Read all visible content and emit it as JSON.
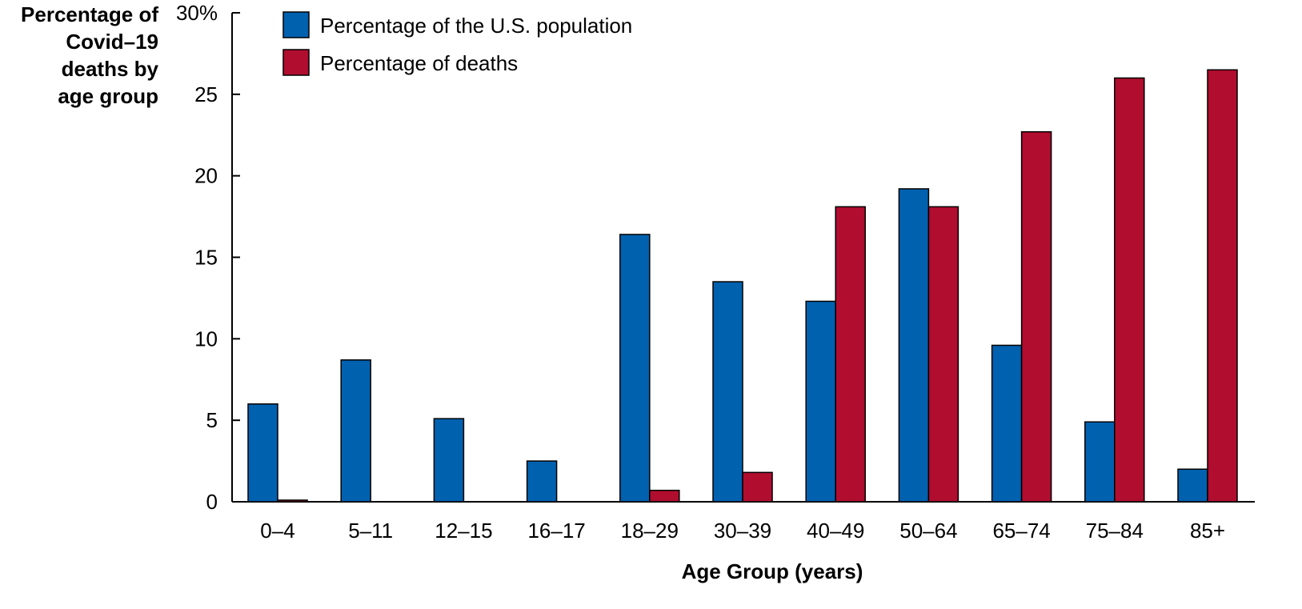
{
  "chart_data": {
    "type": "bar",
    "title": "",
    "ylabel_lines": [
      "Percentage of",
      "Covid–19",
      "deaths by",
      "age group"
    ],
    "xlabel": "Age Group (years)",
    "ylim": [
      0,
      30
    ],
    "y_ticks": [
      0,
      5,
      10,
      15,
      20,
      25,
      30
    ],
    "y_tick_labels": [
      "0",
      "5",
      "10",
      "15",
      "20",
      "25",
      "30%"
    ],
    "categories": [
      "0–4",
      "5–11",
      "12–15",
      "16–17",
      "18–29",
      "30–39",
      "40–49",
      "50–64",
      "65–74",
      "75–84",
      "85+"
    ],
    "series": [
      {
        "name": "Percentage of the U.S. population",
        "color": "#0061AF",
        "values": [
          6.0,
          8.7,
          5.1,
          2.5,
          16.4,
          13.5,
          12.3,
          19.2,
          9.6,
          4.9,
          2.0
        ]
      },
      {
        "name": "Percentage of deaths",
        "color": "#B00D2F",
        "values": [
          0.1,
          0,
          0,
          0,
          0.7,
          1.8,
          18.1,
          18.1,
          22.7,
          26.0,
          26.5
        ]
      }
    ],
    "grid": false,
    "legend_position": "top-left"
  }
}
